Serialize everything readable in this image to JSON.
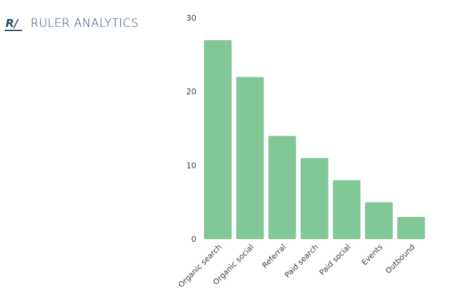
{
  "brand": {
    "mark": "R/",
    "name": "RULER ANALYTICS",
    "color": "#2f4a6b"
  },
  "chart_data": {
    "type": "bar",
    "categories": [
      "Organic search",
      "Organic social",
      "Referral",
      "Paid search",
      "Paid social",
      "Events",
      "Outbound"
    ],
    "values": [
      27,
      22,
      14,
      11,
      8,
      5,
      3
    ],
    "y_ticks": [
      "0",
      "10",
      "20",
      "30"
    ],
    "ylim": [
      0,
      30
    ],
    "grid": false,
    "legend": "none",
    "bar_color": "#82c896"
  }
}
